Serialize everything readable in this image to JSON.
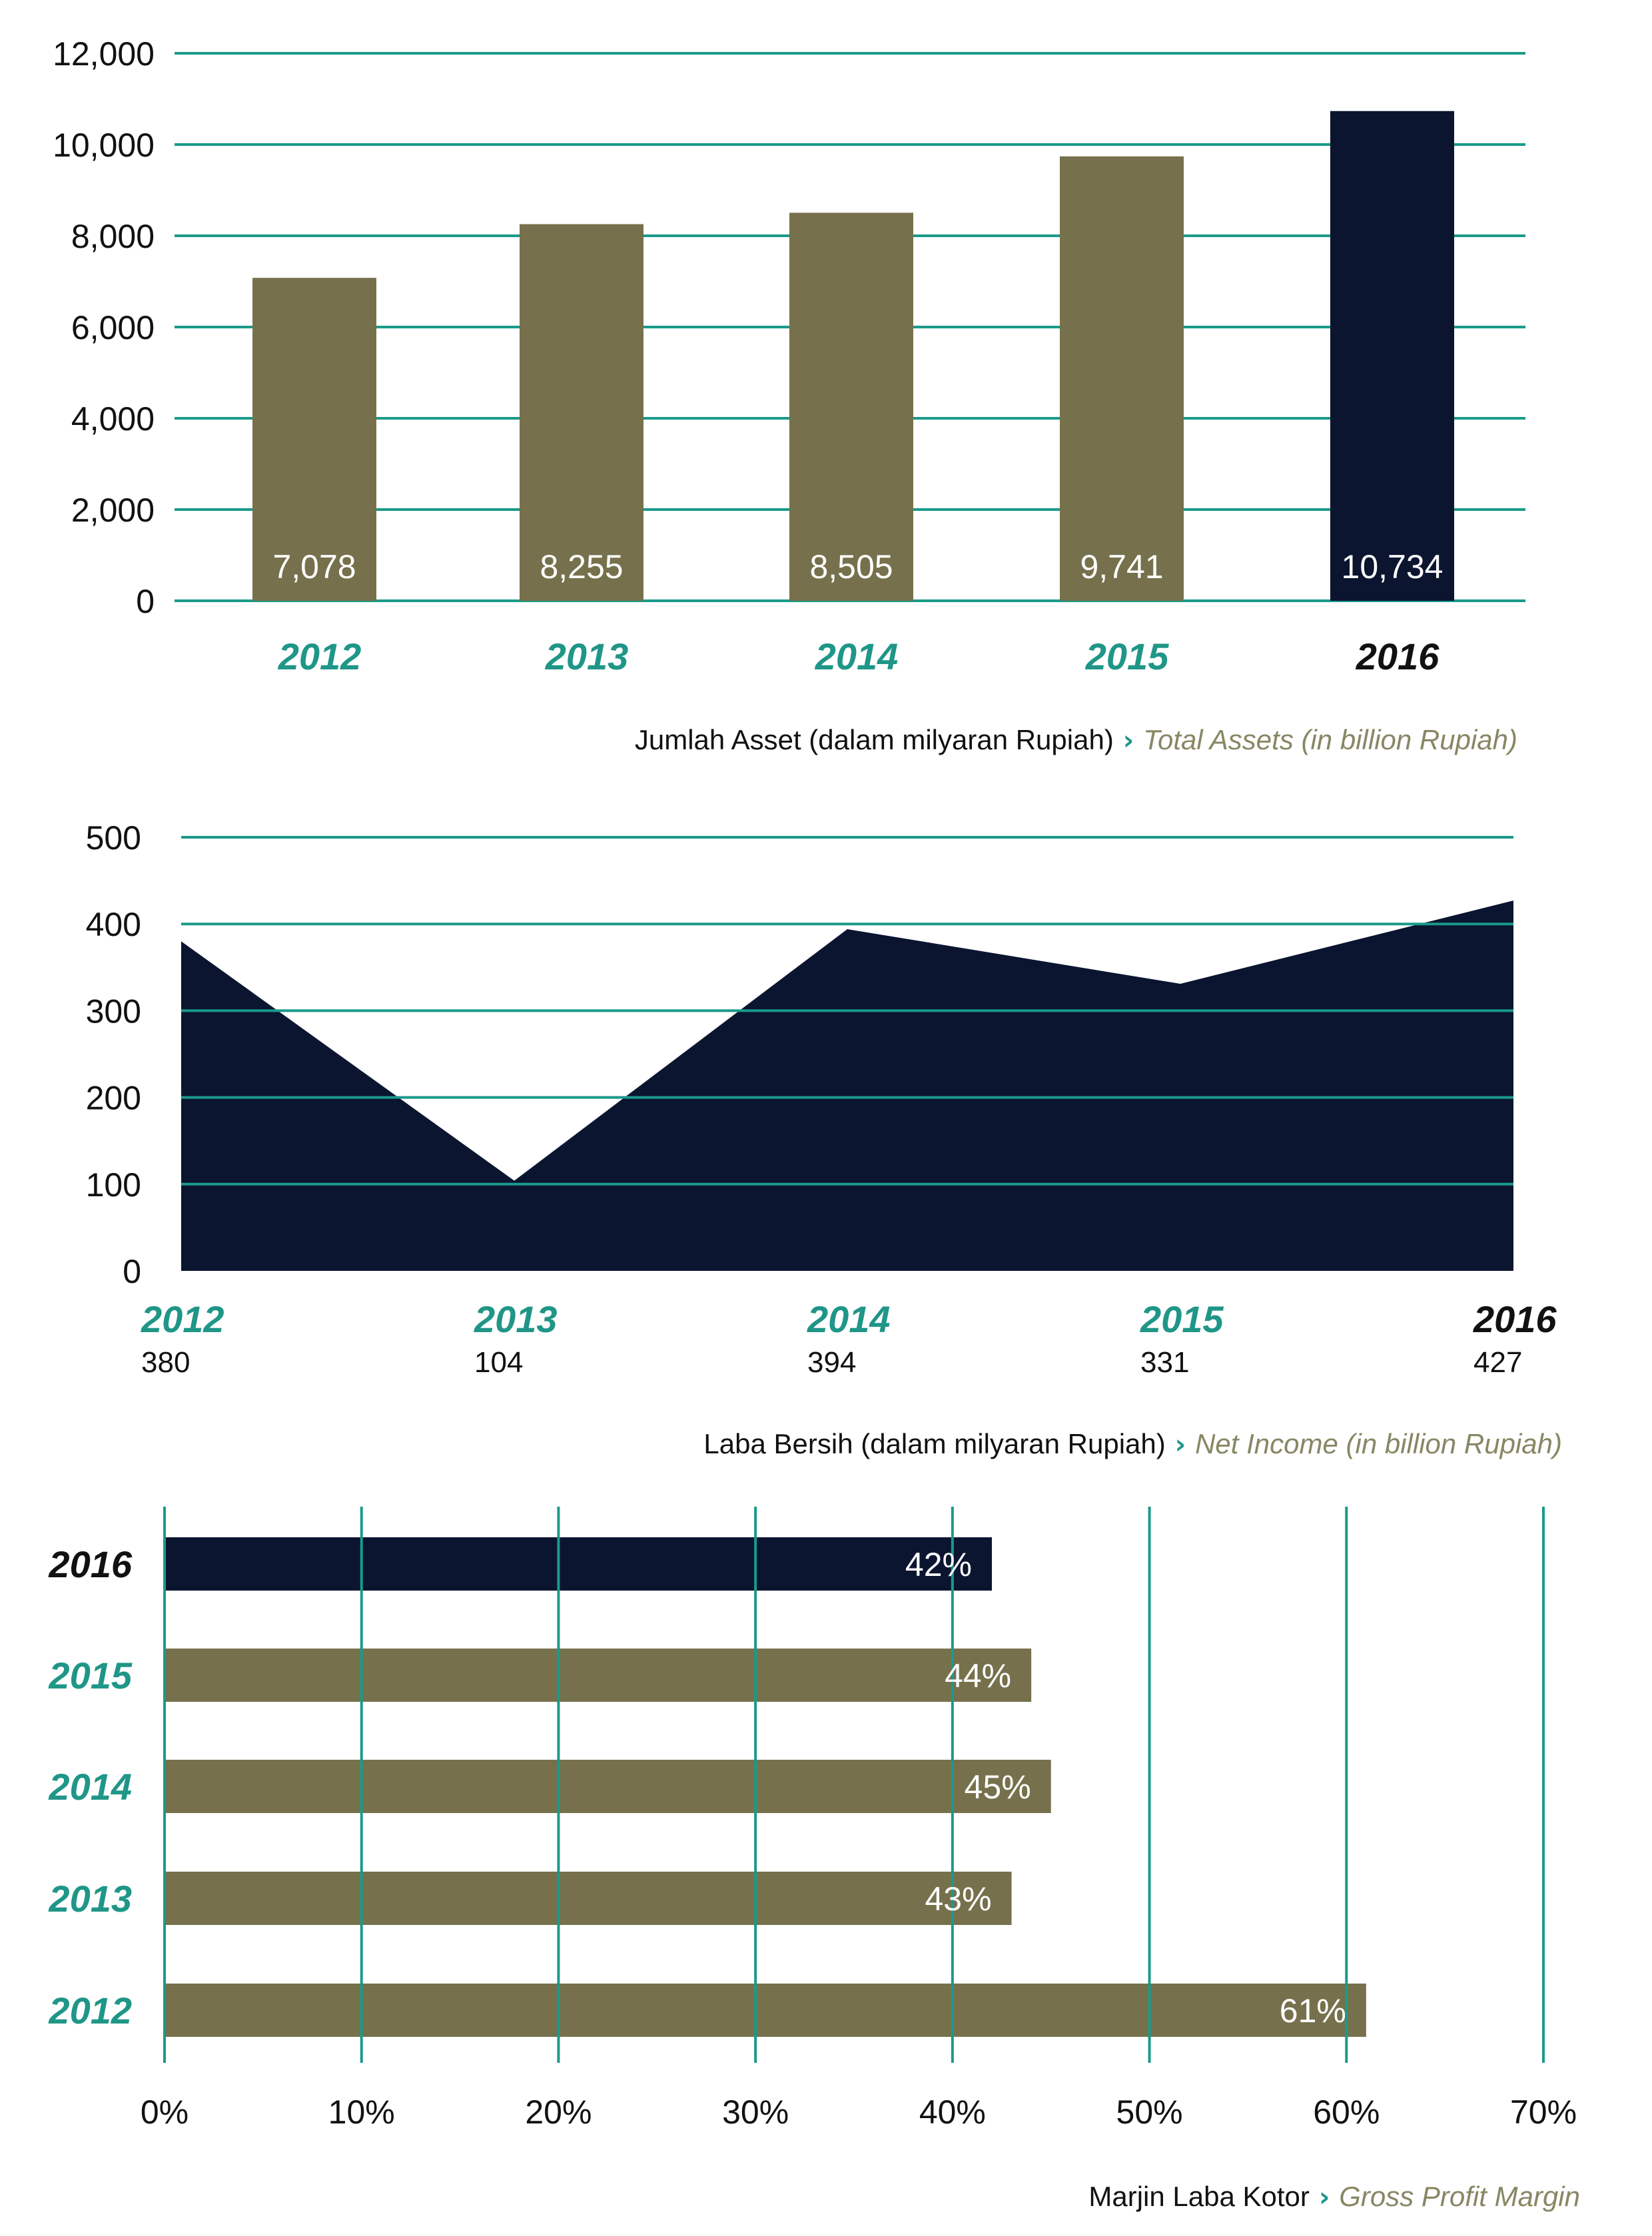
{
  "colors": {
    "grid": "#1a9a8a",
    "olive": "#76714c",
    "navy": "#0b1530",
    "teal_text": "#1f9687",
    "caption_gray": "#878765"
  },
  "chart_data": [
    {
      "type": "bar",
      "categories": [
        "2012",
        "2013",
        "2014",
        "2015",
        "2016"
      ],
      "values": [
        7078,
        8255,
        8505,
        9741,
        10734
      ],
      "value_labels": [
        "7,078",
        "8,255",
        "8,505",
        "9,741",
        "10,734"
      ],
      "highlight_index": 4,
      "ylim": [
        0,
        12000
      ],
      "yticks": [
        0,
        2000,
        4000,
        6000,
        8000,
        10000,
        12000
      ],
      "ytick_labels": [
        "0",
        "2,000",
        "4,000",
        "6,000",
        "8,000",
        "10,000",
        "12,000"
      ],
      "caption_main": "Jumlah Asset (dalam milyaran Rupiah)",
      "caption_sep": "›",
      "caption_en": "Total Assets (in billion Rupiah)",
      "grid": true
    },
    {
      "type": "area",
      "categories": [
        "2012",
        "2013",
        "2014",
        "2015",
        "2016"
      ],
      "values": [
        380,
        104,
        394,
        331,
        427
      ],
      "value_labels": [
        "380",
        "104",
        "394",
        "331",
        "427"
      ],
      "highlight_index": 4,
      "ylim": [
        0,
        500
      ],
      "yticks": [
        0,
        100,
        200,
        300,
        400,
        500
      ],
      "ytick_labels": [
        "0",
        "100",
        "200",
        "300",
        "400",
        "500"
      ],
      "caption_main": "Laba Bersih (dalam milyaran Rupiah)",
      "caption_sep": "›",
      "caption_en": "Net Income (in billion Rupiah)",
      "grid": true
    },
    {
      "type": "bar",
      "orientation": "horizontal",
      "categories": [
        "2016",
        "2015",
        "2014",
        "2013",
        "2012"
      ],
      "values": [
        42,
        44,
        45,
        43,
        61
      ],
      "value_labels": [
        "42%",
        "44%",
        "45%",
        "43%",
        "61%"
      ],
      "highlight_index": 0,
      "xlim": [
        0,
        70
      ],
      "xticks": [
        0,
        10,
        20,
        30,
        40,
        50,
        60,
        70
      ],
      "xtick_labels": [
        "0%",
        "10%",
        "20%",
        "30%",
        "40%",
        "50%",
        "60%",
        "70%"
      ],
      "caption_main": "Marjin Laba Kotor",
      "caption_sep": "›",
      "caption_en": "Gross Profit Margin",
      "grid": true
    }
  ]
}
